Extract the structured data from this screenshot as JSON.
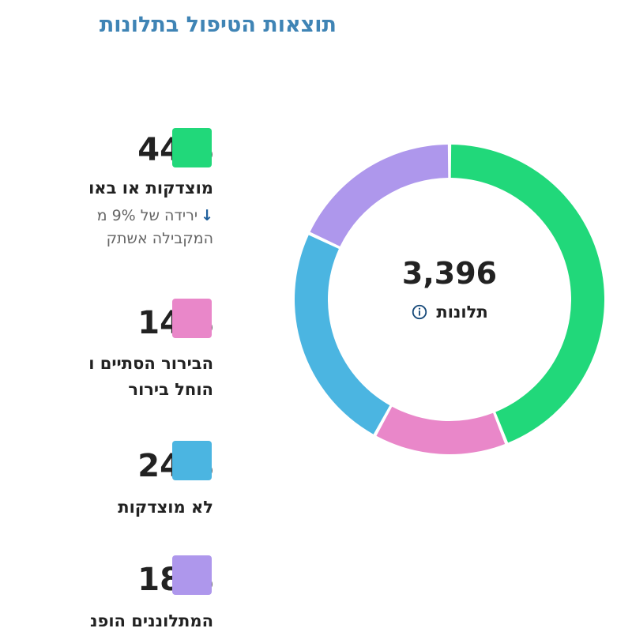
{
  "title": "תוצאות הטיפול בתלונות",
  "center": {
    "count": "3,396",
    "label": "תלונות",
    "info_icon": "info-icon"
  },
  "legend": [
    {
      "percent": "44%",
      "label": "מוצדקות או באו",
      "change_text": "ירידה של 9% מ",
      "change_text_2": "המקבילה אשתק",
      "change_icon": "down-arrow-icon",
      "color": "#21d87a"
    },
    {
      "percent": "14%",
      "label": "הבירור הסתיים ו",
      "label_2": "הוחל בירור",
      "color": "#e987c9"
    },
    {
      "percent": "24%",
      "label": "לא מוצדקות",
      "color": "#4bb5e1"
    },
    {
      "percent": "18%",
      "label": "המתלוננים הופנ",
      "color": "#ae97ec"
    }
  ],
  "chart_data": {
    "type": "pie",
    "title": "תוצאות הטיפול בתלונות",
    "total": 3396,
    "total_label": "תלונות",
    "slices": [
      {
        "label": "מוצדקות או באו",
        "value": 44,
        "color": "#21d87a"
      },
      {
        "label": "הבירור הסתיים ו הוחל בירור",
        "value": 14,
        "color": "#e987c9"
      },
      {
        "label": "לא מוצדקות",
        "value": 24,
        "color": "#4bb5e1"
      },
      {
        "label": "המתלוננים הופנ",
        "value": 18,
        "color": "#ae97ec"
      }
    ],
    "donut": true,
    "legend_position": "left"
  }
}
